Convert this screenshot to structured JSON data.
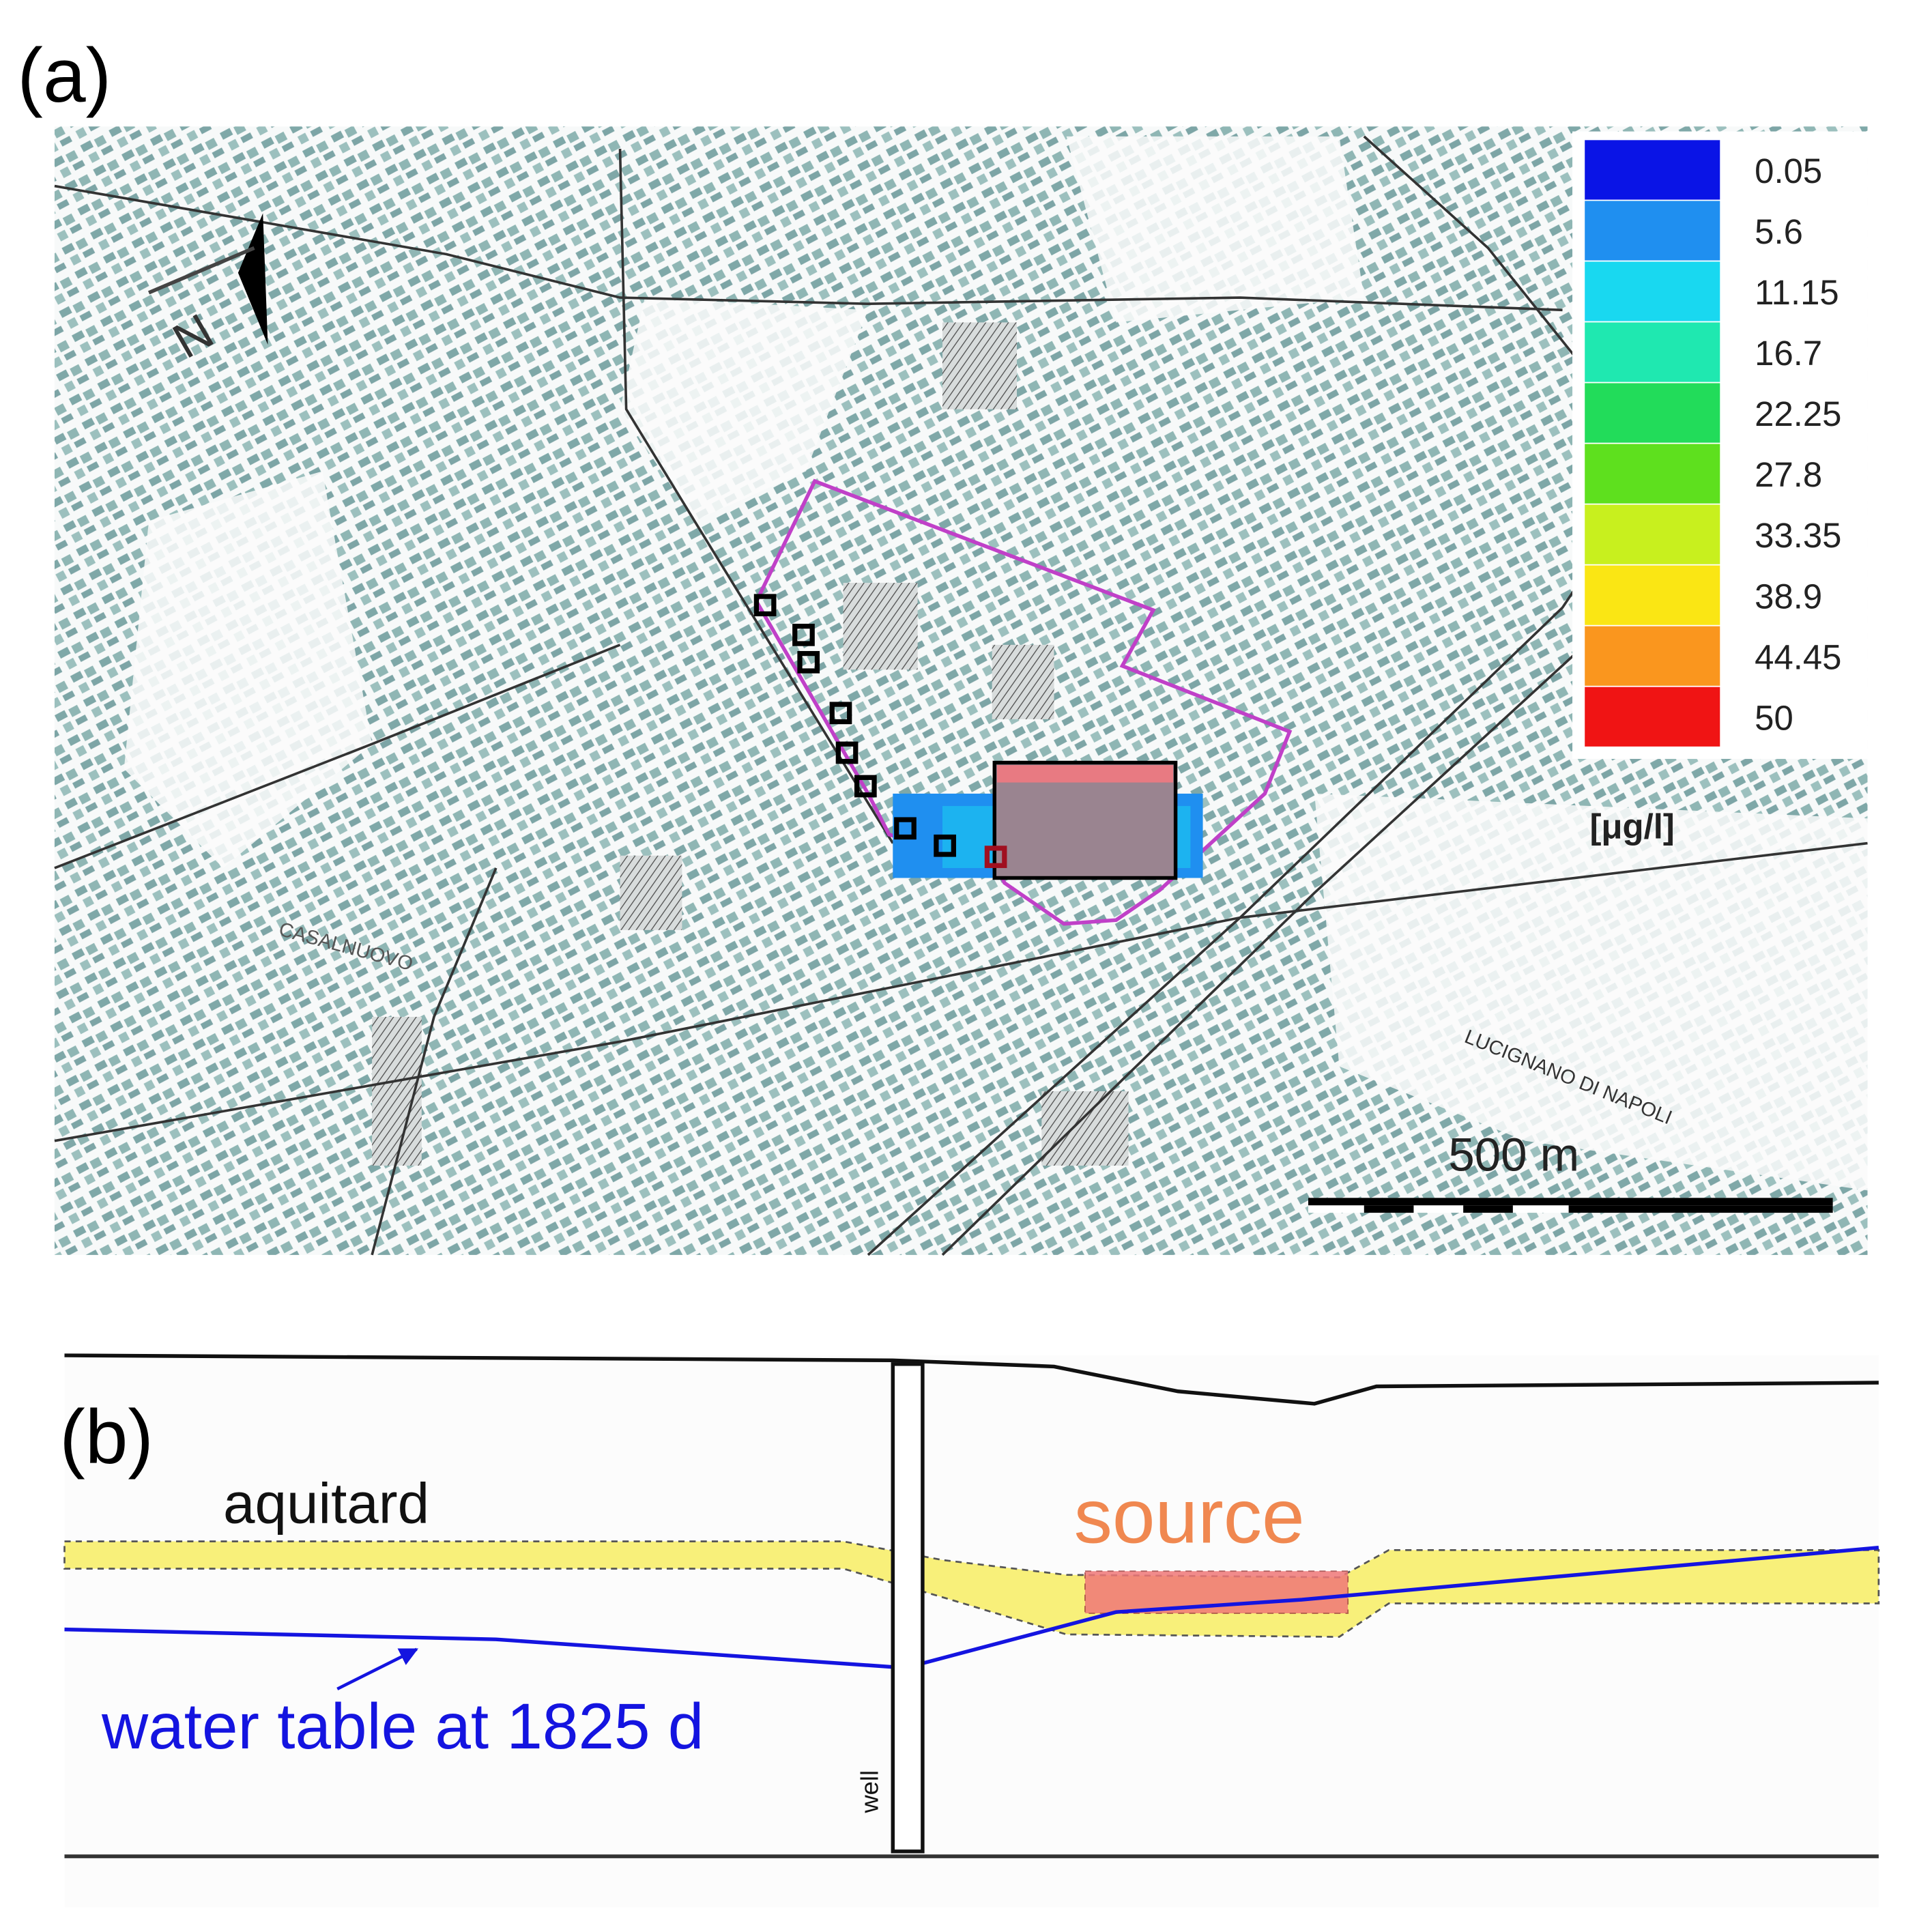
{
  "panel_a": {
    "label": "(a)",
    "legend": {
      "items": [
        {
          "label": "0.05",
          "color": "#0a14e6"
        },
        {
          "label": "5.6",
          "color": "#1f8ff0"
        },
        {
          "label": "11.15",
          "color": "#19d8f0"
        },
        {
          "label": "16.7",
          "color": "#1fe8b0"
        },
        {
          "label": "22.25",
          "color": "#22dc5a"
        },
        {
          "label": "27.8",
          "color": "#5ee01e"
        },
        {
          "label": "33.35",
          "color": "#c8f01e"
        },
        {
          "label": "38.9",
          "color": "#fae614"
        },
        {
          "label": "44.45",
          "color": "#fa961e"
        },
        {
          "label": "50",
          "color": "#f01414"
        }
      ],
      "unit": "[μg/l]"
    },
    "north": "N",
    "scale_bar": "500 m",
    "place_names": [
      "CASALNUOVO",
      "LUCIGNANO DI NAPOLI"
    ]
  },
  "panel_b": {
    "label": "(b)",
    "aquitard": "aquitard",
    "source": "source",
    "water_table": "water table at 1825 d",
    "well": "well"
  }
}
